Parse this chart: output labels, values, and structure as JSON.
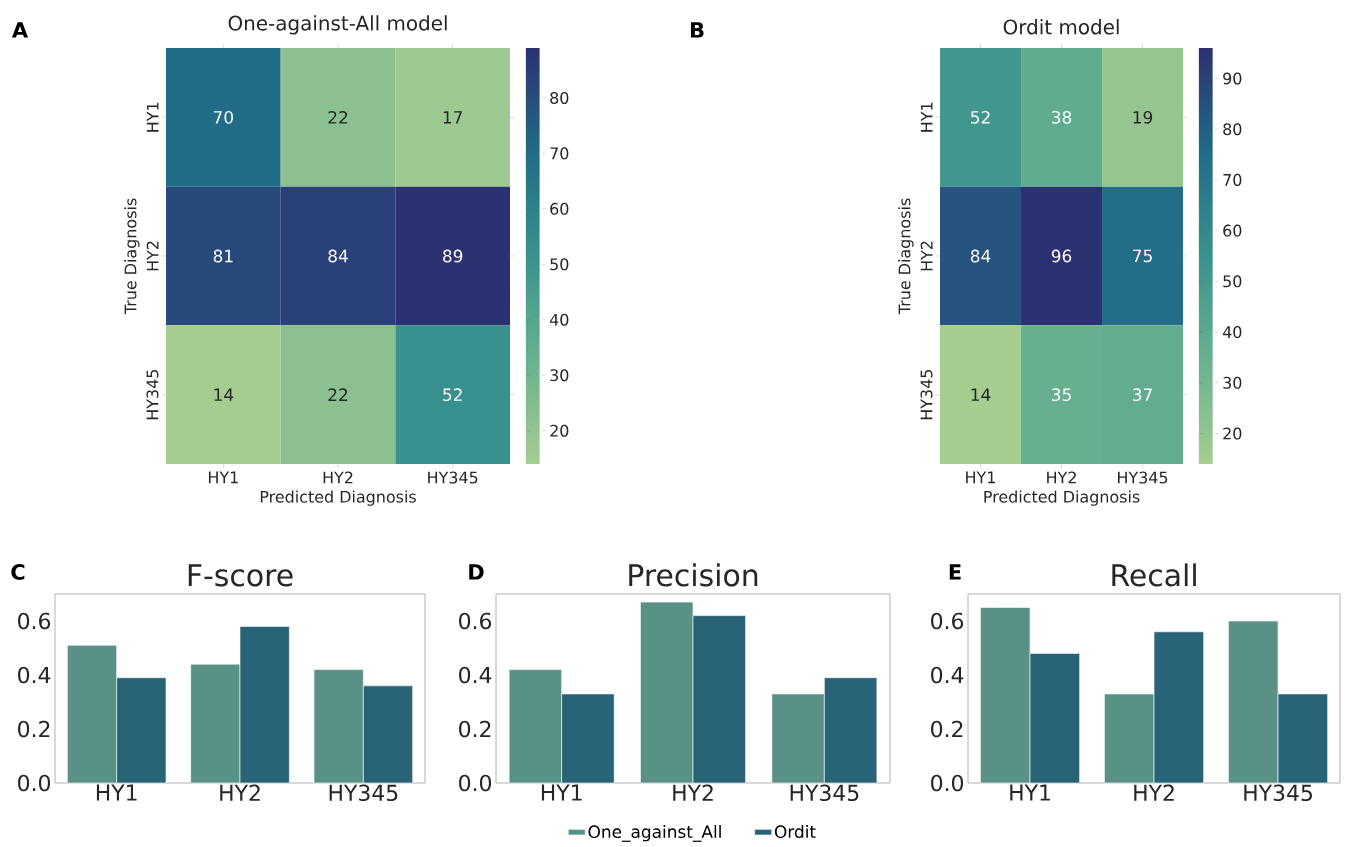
{
  "chart_data": [
    {
      "type": "heatmap",
      "title": "One-against-All model",
      "xlabel": "Predicted Diagnosis",
      "ylabel": "True Diagnosis",
      "categories": [
        "HY1",
        "HY2",
        "HY345"
      ],
      "y_categories": [
        "HY1",
        "HY2",
        "HY345"
      ],
      "cells": [
        [
          70,
          22,
          17
        ],
        [
          81,
          84,
          89
        ],
        [
          14,
          22,
          52
        ]
      ],
      "clim": [
        14,
        89
      ],
      "data_labels": true,
      "cticks": [
        20,
        30,
        40,
        50,
        60,
        70,
        80
      ],
      "annotations": [
        "A"
      ]
    },
    {
      "type": "heatmap",
      "title": "Ordit model",
      "xlabel": "Predicted Diagnosis",
      "ylabel": "True Diagnosis",
      "categories": [
        "HY1",
        "HY2",
        "HY345"
      ],
      "y_categories": [
        "HY1",
        "HY2",
        "HY345"
      ],
      "cells": [
        [
          52,
          38,
          19
        ],
        [
          84,
          96,
          75
        ],
        [
          14,
          35,
          37
        ]
      ],
      "clim": [
        14,
        96
      ],
      "data_labels": true,
      "cticks": [
        20,
        30,
        40,
        50,
        60,
        70,
        80,
        90
      ],
      "annotations": [
        "B"
      ]
    },
    {
      "type": "bar",
      "title": "F-score",
      "categories": [
        "HY1",
        "HY2",
        "HY345"
      ],
      "series": [
        {
          "color": "#5a9187",
          "values": [
            0.51,
            0.44,
            0.42
          ]
        },
        {
          "color": "#286377",
          "values": [
            0.39,
            0.58,
            0.36
          ]
        }
      ],
      "ylim": [
        0,
        0.7
      ],
      "yticks": [
        {
          "value": 0,
          "label": "0.0"
        },
        {
          "value": 0.2,
          "label": "0.2"
        },
        {
          "value": 0.4,
          "label": "0.4"
        },
        {
          "value": 0.6,
          "label": "0.6"
        }
      ],
      "annotations": [
        "C"
      ]
    },
    {
      "type": "bar",
      "title": "Precision",
      "categories": [
        "HY1",
        "HY2",
        "HY345"
      ],
      "series": [
        {
          "name": "One_against_All",
          "color": "#5a9187",
          "values": [
            0.42,
            0.67,
            0.33
          ]
        },
        {
          "name": "Ordit",
          "color": "#286377",
          "values": [
            0.33,
            0.62,
            0.39
          ]
        }
      ],
      "ylim": [
        0,
        0.7
      ],
      "yticks": [
        {
          "value": 0,
          "label": "0.0"
        },
        {
          "value": 0.2,
          "label": "0.2"
        },
        {
          "value": 0.4,
          "label": "0.4"
        },
        {
          "value": 0.6,
          "label": "0.6"
        }
      ],
      "legend": "bottom",
      "annotations": [
        "D"
      ]
    },
    {
      "type": "bar",
      "title": "Recall",
      "categories": [
        "HY1",
        "HY2",
        "HY345"
      ],
      "series": [
        {
          "color": "#5a9187",
          "values": [
            0.65,
            0.33,
            0.6
          ]
        },
        {
          "color": "#286377",
          "values": [
            0.48,
            0.56,
            0.33
          ]
        }
      ],
      "ylim": [
        0,
        0.7
      ],
      "yticks": [
        {
          "value": 0,
          "label": "0.0"
        },
        {
          "value": 0.2,
          "label": "0.2"
        },
        {
          "value": 0.4,
          "label": "0.4"
        },
        {
          "value": 0.6,
          "label": "0.6"
        }
      ],
      "annotations": [
        "E"
      ]
    }
  ]
}
